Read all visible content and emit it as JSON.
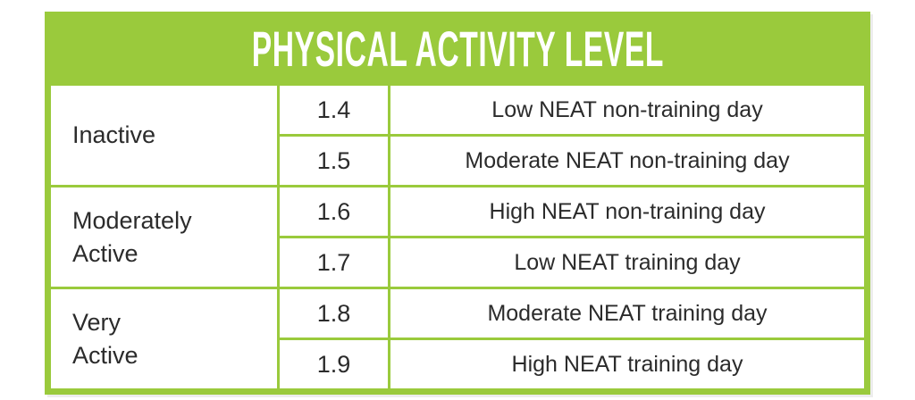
{
  "header": {
    "title": "PHYSICAL ACTIVITY LEVEL"
  },
  "colors": {
    "accent_green": "#9aca3c",
    "title_text": "#ffffff",
    "body_text": "#2b2b2b",
    "background": "#ffffff"
  },
  "table": {
    "groups": [
      {
        "category": "Inactive",
        "rows": [
          {
            "value": "1.4",
            "description": "Low NEAT non-training day"
          },
          {
            "value": "1.5",
            "description": "Moderate NEAT non-training day"
          }
        ]
      },
      {
        "category": "Moderately\nActive",
        "rows": [
          {
            "value": "1.6",
            "description": "High NEAT non-training day"
          },
          {
            "value": "1.7",
            "description": "Low NEAT training day"
          }
        ]
      },
      {
        "category": "Very\nActive",
        "rows": [
          {
            "value": "1.8",
            "description": "Moderate NEAT training day"
          },
          {
            "value": "1.9",
            "description": "High NEAT training day"
          }
        ]
      }
    ]
  },
  "chart_data": {
    "type": "table",
    "title": "PHYSICAL ACTIVITY LEVEL",
    "rows": [
      [
        "Inactive",
        1.4,
        "Low NEAT non-training day"
      ],
      [
        "Inactive",
        1.5,
        "Moderate NEAT non-training day"
      ],
      [
        "Moderately Active",
        1.6,
        "High NEAT non-training day"
      ],
      [
        "Moderately Active",
        1.7,
        "Low NEAT training day"
      ],
      [
        "Very Active",
        1.8,
        "Moderate NEAT training day"
      ],
      [
        "Very Active",
        1.9,
        "High NEAT training day"
      ]
    ],
    "layout_hints": {
      "header_background": "#9aca3c",
      "border_color": "#9aca3c",
      "category_column_merged": true
    }
  }
}
